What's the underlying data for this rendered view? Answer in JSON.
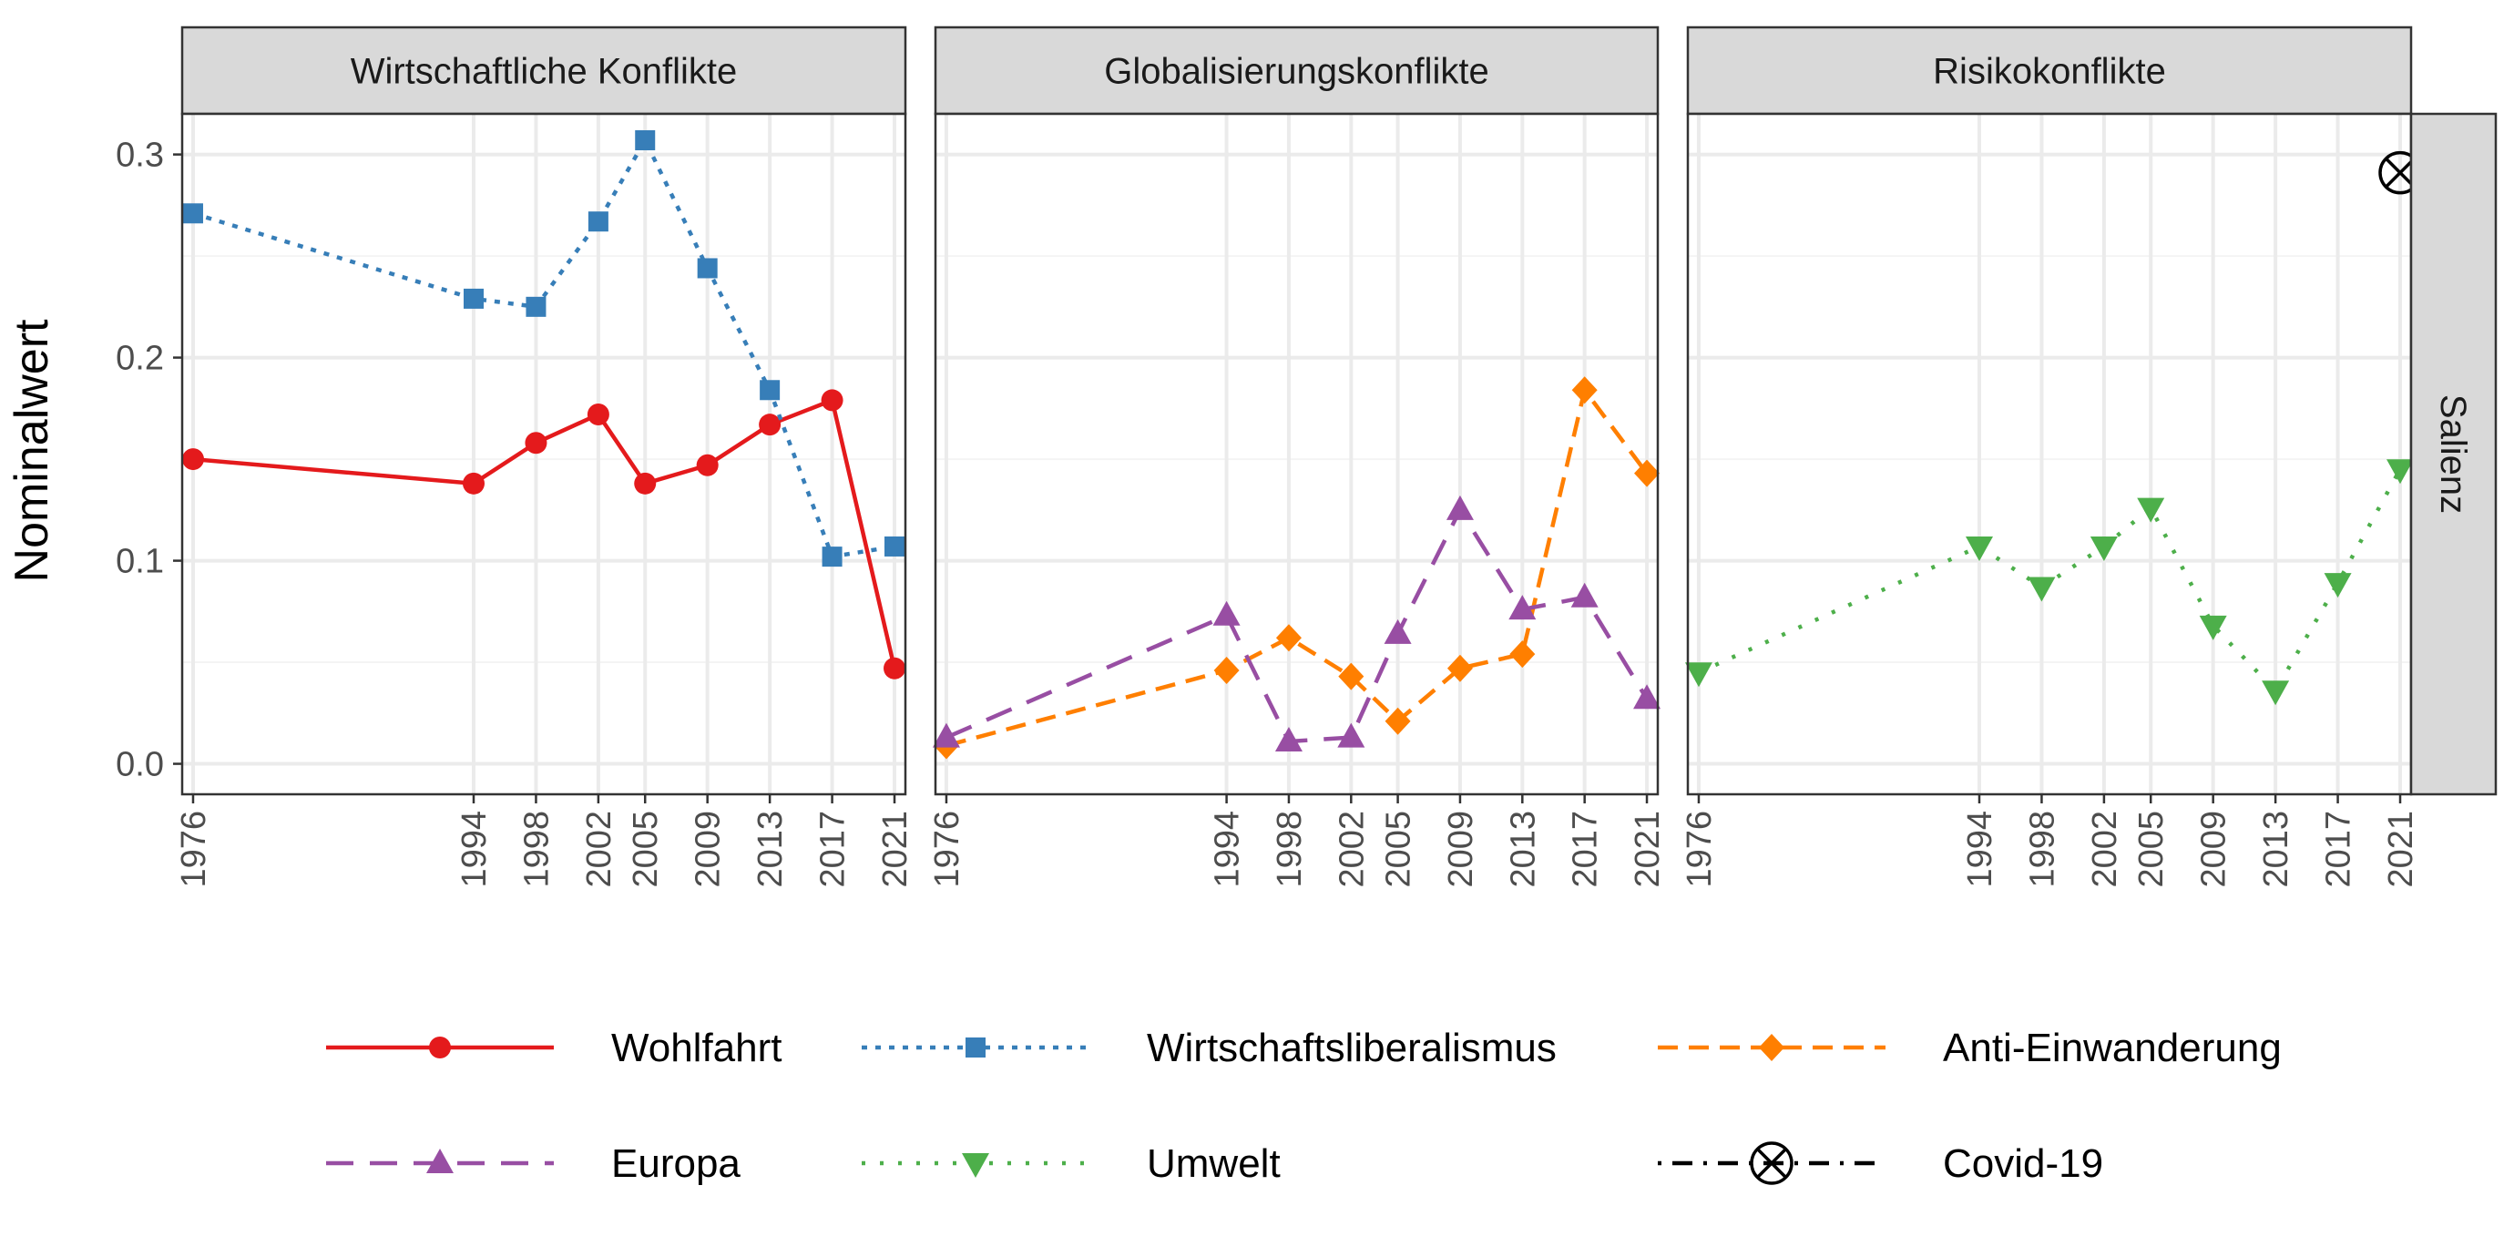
{
  "chart_data": {
    "type": "line",
    "ylabel": "Nominalwert",
    "row_strip": "Salienz",
    "ylim": [
      -0.015,
      0.32
    ],
    "y_ticks": [
      0.0,
      0.1,
      0.2,
      0.3
    ],
    "y_tick_labels": [
      "0.0",
      "0.1",
      "0.2",
      "0.3"
    ],
    "x_ticks": [
      1976,
      1994,
      1998,
      2002,
      2005,
      2009,
      2013,
      2017,
      2021
    ],
    "x_tick_labels": [
      "1976",
      "1994",
      "1998",
      "2002",
      "2005",
      "2009",
      "2013",
      "2017",
      "2021"
    ],
    "xlim": [
      1975.3,
      2021.7
    ],
    "grid": true,
    "legend_position": "bottom",
    "panels": [
      {
        "title": "Wirtschaftliche Konflikte",
        "series": [
          {
            "name": "Wohlfahrt",
            "x": [
              1976,
              1994,
              1998,
              2002,
              2005,
              2009,
              2013,
              2017,
              2021
            ],
            "y": [
              0.15,
              0.138,
              0.158,
              0.172,
              0.138,
              0.147,
              0.167,
              0.179,
              0.047
            ]
          },
          {
            "name": "Wirtschaftsliberalismus",
            "x": [
              1976,
              1994,
              1998,
              2002,
              2005,
              2009,
              2013,
              2017,
              2021
            ],
            "y": [
              0.271,
              0.229,
              0.225,
              0.267,
              0.307,
              0.244,
              0.184,
              0.102,
              0.107
            ]
          }
        ]
      },
      {
        "title": "Globalisierungskonflikte",
        "series": [
          {
            "name": "Anti-Einwanderung",
            "x": [
              1976,
              1994,
              1998,
              2002,
              2005,
              2009,
              2013,
              2017,
              2021
            ],
            "y": [
              0.009,
              0.046,
              0.062,
              0.043,
              0.021,
              0.047,
              0.054,
              0.184,
              0.143
            ]
          },
          {
            "name": "Europa",
            "x": [
              1976,
              1994,
              1998,
              2002,
              2005,
              2009,
              2013,
              2017,
              2021
            ],
            "y": [
              0.013,
              0.073,
              0.011,
              0.013,
              0.064,
              0.125,
              0.076,
              0.082,
              0.032
            ]
          }
        ]
      },
      {
        "title": "Risikokonflikte",
        "series": [
          {
            "name": "Umwelt",
            "x": [
              1976,
              1994,
              1998,
              2002,
              2005,
              2009,
              2013,
              2017,
              2021
            ],
            "y": [
              0.045,
              0.107,
              0.087,
              0.107,
              0.126,
              0.068,
              0.036,
              0.089,
              0.145
            ]
          },
          {
            "name": "Covid-19",
            "x": [
              2021
            ],
            "y": [
              0.291
            ]
          }
        ]
      }
    ],
    "legend": [
      {
        "name": "Wohlfahrt",
        "color": "#e41a1c",
        "dash": "solid",
        "marker": "circle"
      },
      {
        "name": "Wirtschaftsliberalismus",
        "color": "#377eb8",
        "dash": "dotted",
        "marker": "square"
      },
      {
        "name": "Anti-Einwanderung",
        "color": "#ff7f00",
        "dash": "dashed",
        "marker": "diamond"
      },
      {
        "name": "Europa",
        "color": "#984ea3",
        "dash": "longdash",
        "marker": "triangle-up"
      },
      {
        "name": "Umwelt",
        "color": "#4daf4a",
        "dash": "dotted-wide",
        "marker": "triangle-down"
      },
      {
        "name": "Covid-19",
        "color": "#000000",
        "dash": "dotdash",
        "marker": "circle-cross"
      }
    ]
  }
}
